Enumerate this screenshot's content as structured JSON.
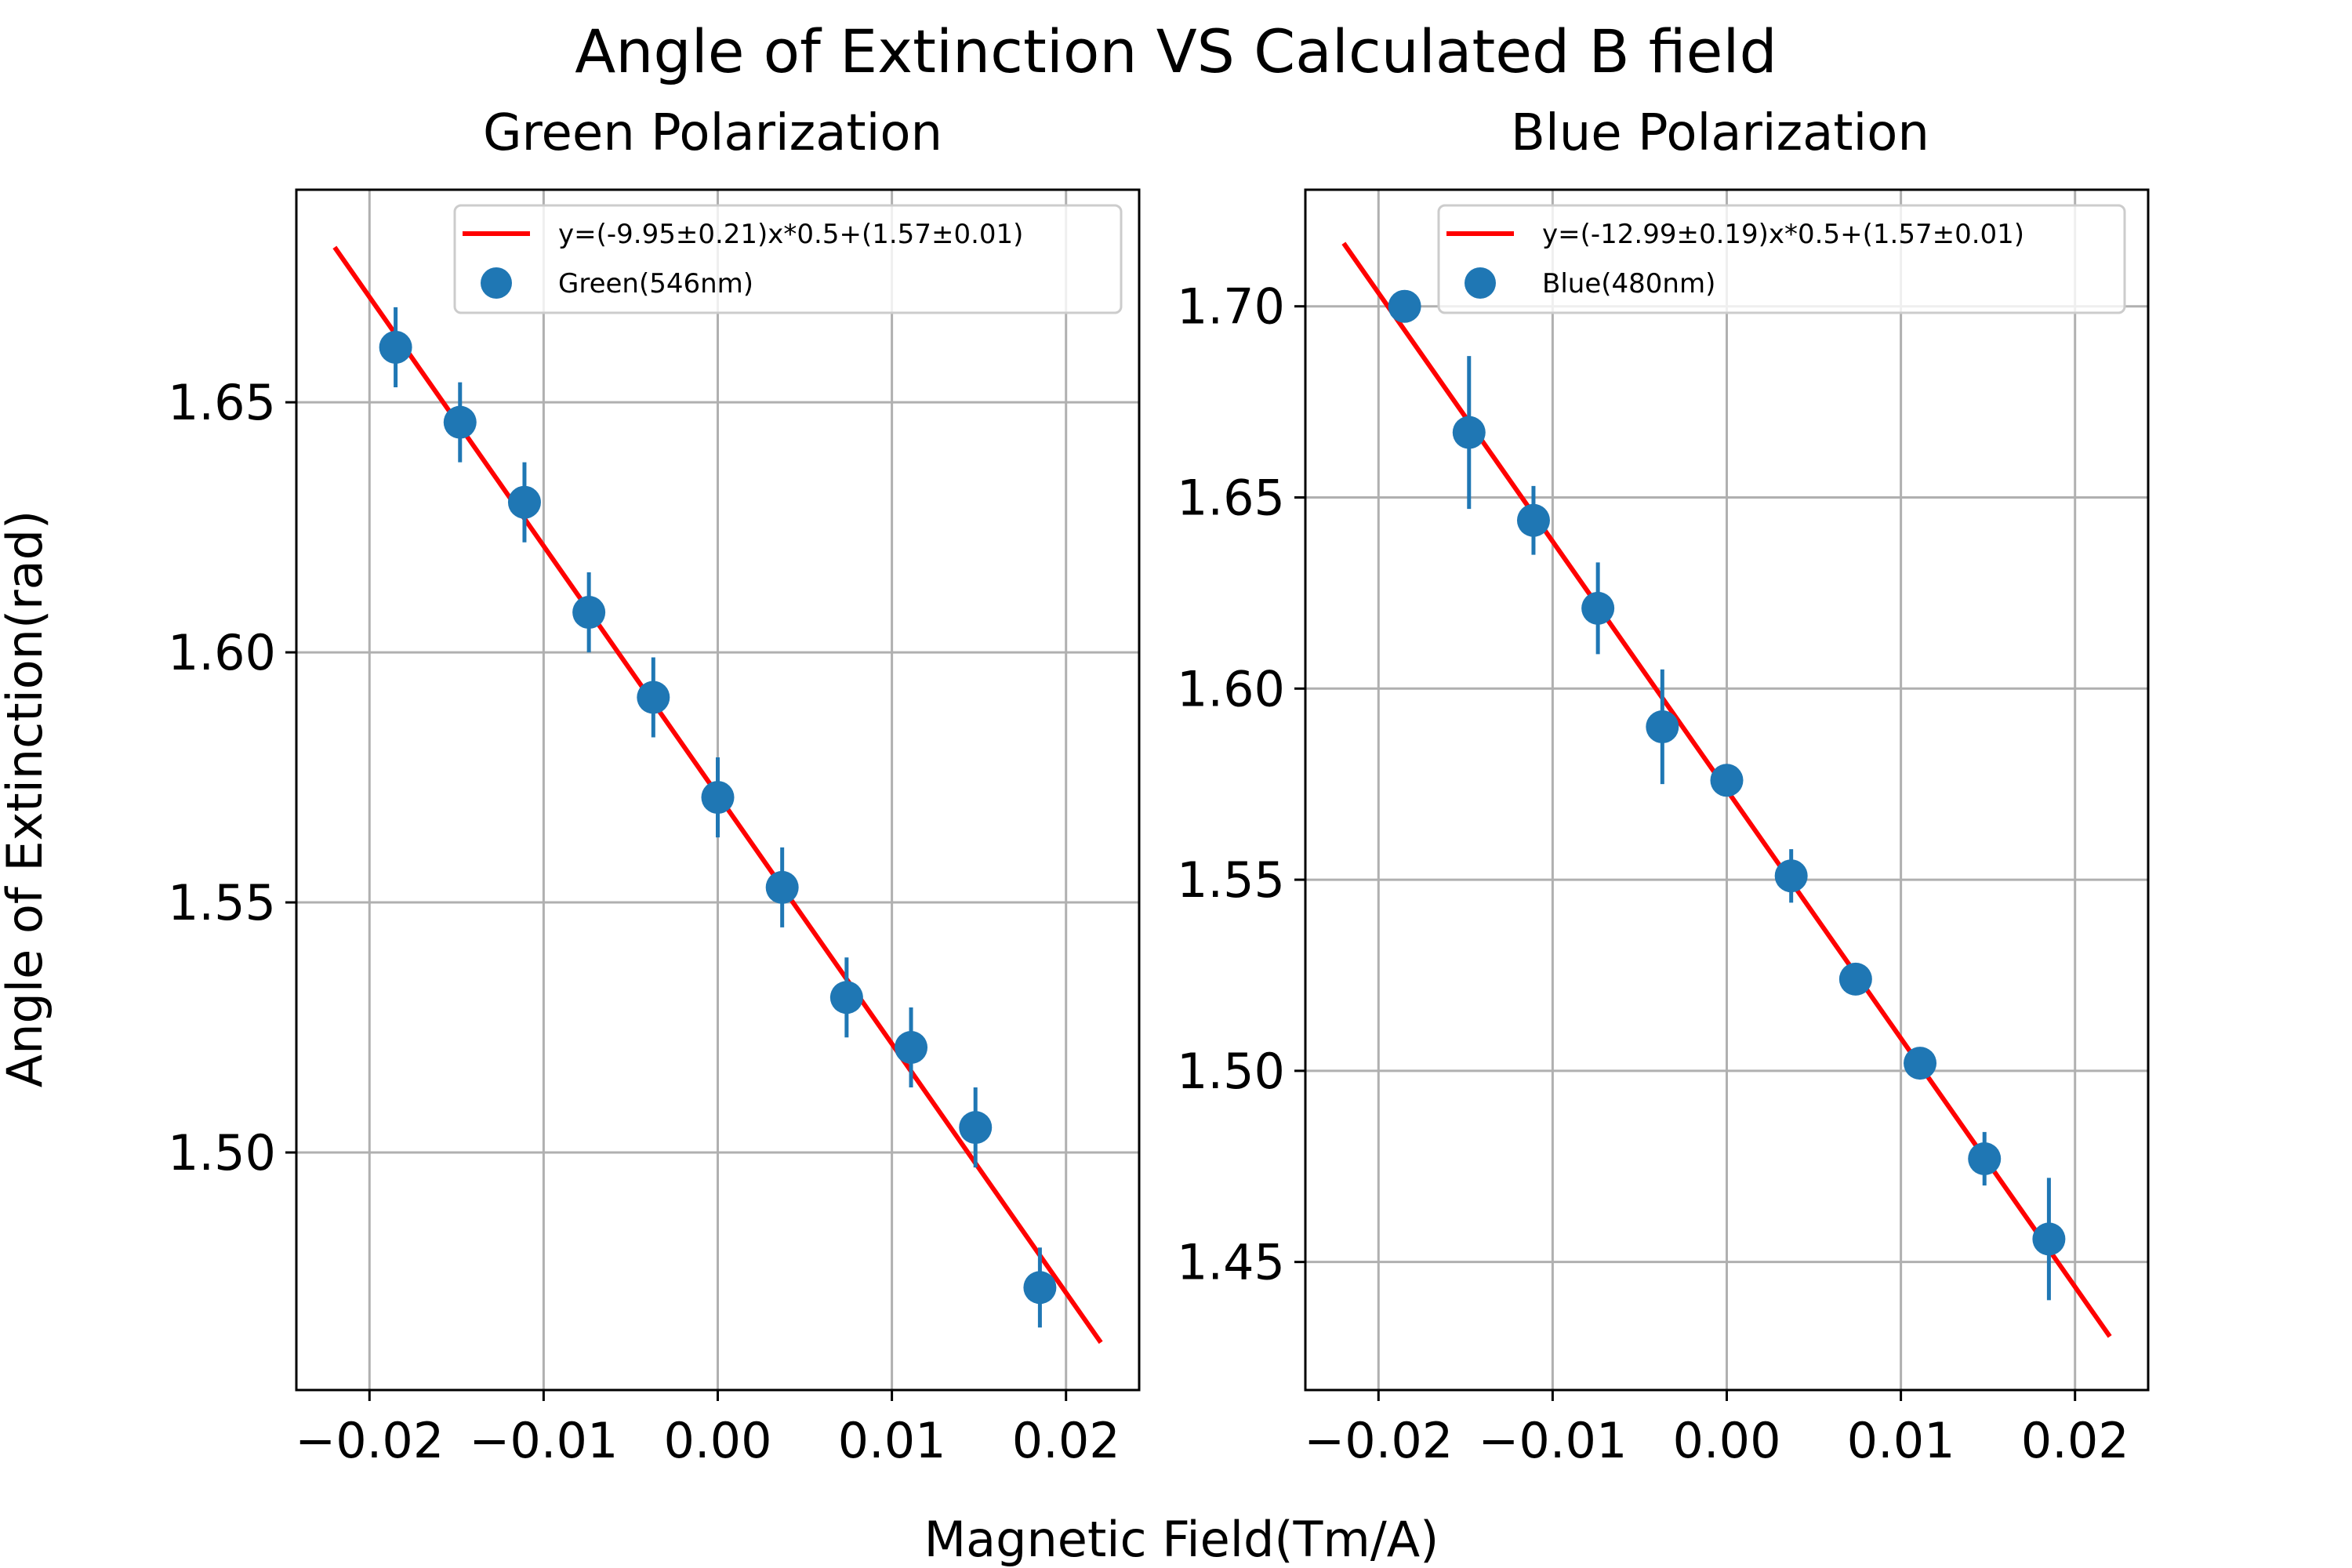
{
  "figure": {
    "suptitle": "Angle of Extinction VS Calculated B field",
    "xlabel": "Magnetic Field(Tm/A)",
    "ylabel": "Angle of Extinction(rad)"
  },
  "colors": {
    "fit_line": "#ff0000",
    "points": "#1f77b4",
    "grid": "#b0b0b0",
    "axes": "#000000"
  },
  "chart_data": [
    {
      "type": "scatter",
      "title": "Green Polarization",
      "grid": true,
      "legend_position": "top-right",
      "xlim": [
        -0.0242,
        0.0242
      ],
      "ylim": [
        1.4525,
        1.6925
      ],
      "xticks": [
        -0.02,
        -0.01,
        0.0,
        0.01,
        0.02
      ],
      "xtick_labels": [
        "−0.02",
        "−0.01",
        "0.00",
        "0.01",
        "0.02"
      ],
      "yticks": [
        1.5,
        1.55,
        1.6,
        1.65
      ],
      "ytick_labels": [
        "1.50",
        "1.55",
        "1.60",
        "1.65"
      ],
      "fit": {
        "label": "y=(-9.95±0.21)x*0.5+(1.57±0.01)",
        "x": [
          -0.022,
          0.022
        ],
        "y": [
          1.681,
          1.462
        ]
      },
      "series": [
        {
          "name": "Green(546nm)",
          "x": [
            -0.0185,
            -0.0148,
            -0.0111,
            -0.0074,
            -0.0037,
            0.0,
            0.0037,
            0.0074,
            0.0111,
            0.0148,
            0.0185
          ],
          "y": [
            1.661,
            1.646,
            1.63,
            1.608,
            1.591,
            1.571,
            1.553,
            1.531,
            1.521,
            1.505,
            1.473
          ],
          "yerr": [
            0.008,
            0.008,
            0.008,
            0.008,
            0.008,
            0.008,
            0.008,
            0.008,
            0.008,
            0.008,
            0.008
          ]
        }
      ]
    },
    {
      "type": "scatter",
      "title": "Blue Polarization",
      "grid": true,
      "legend_position": "top-right",
      "xlim": [
        -0.0242,
        0.0242
      ],
      "ylim": [
        1.4165,
        1.7305
      ],
      "xticks": [
        -0.02,
        -0.01,
        0.0,
        0.01,
        0.02
      ],
      "xtick_labels": [
        "−0.02",
        "−0.01",
        "0.00",
        "0.01",
        "0.02"
      ],
      "yticks": [
        1.45,
        1.5,
        1.55,
        1.6,
        1.65,
        1.7
      ],
      "ytick_labels": [
        "1.45",
        "1.50",
        "1.55",
        "1.60",
        "1.65",
        "1.70"
      ],
      "fit": {
        "label": "y=(-12.99±0.19)x*0.5+(1.57±0.01)",
        "x": [
          -0.022,
          0.022
        ],
        "y": [
          1.7165,
          1.4305
        ]
      },
      "series": [
        {
          "name": "Blue(480nm)",
          "x": [
            -0.0185,
            -0.0148,
            -0.0111,
            -0.0074,
            -0.0037,
            0.0,
            0.0037,
            0.0074,
            0.0111,
            0.0148,
            0.0185
          ],
          "y": [
            1.7,
            1.667,
            1.644,
            1.621,
            1.59,
            1.576,
            1.551,
            1.524,
            1.502,
            1.477,
            1.456
          ],
          "yerr": [
            0.0,
            0.02,
            0.009,
            0.012,
            0.015,
            0.0,
            0.007,
            0.0,
            0.0,
            0.007,
            0.016
          ]
        }
      ]
    }
  ]
}
